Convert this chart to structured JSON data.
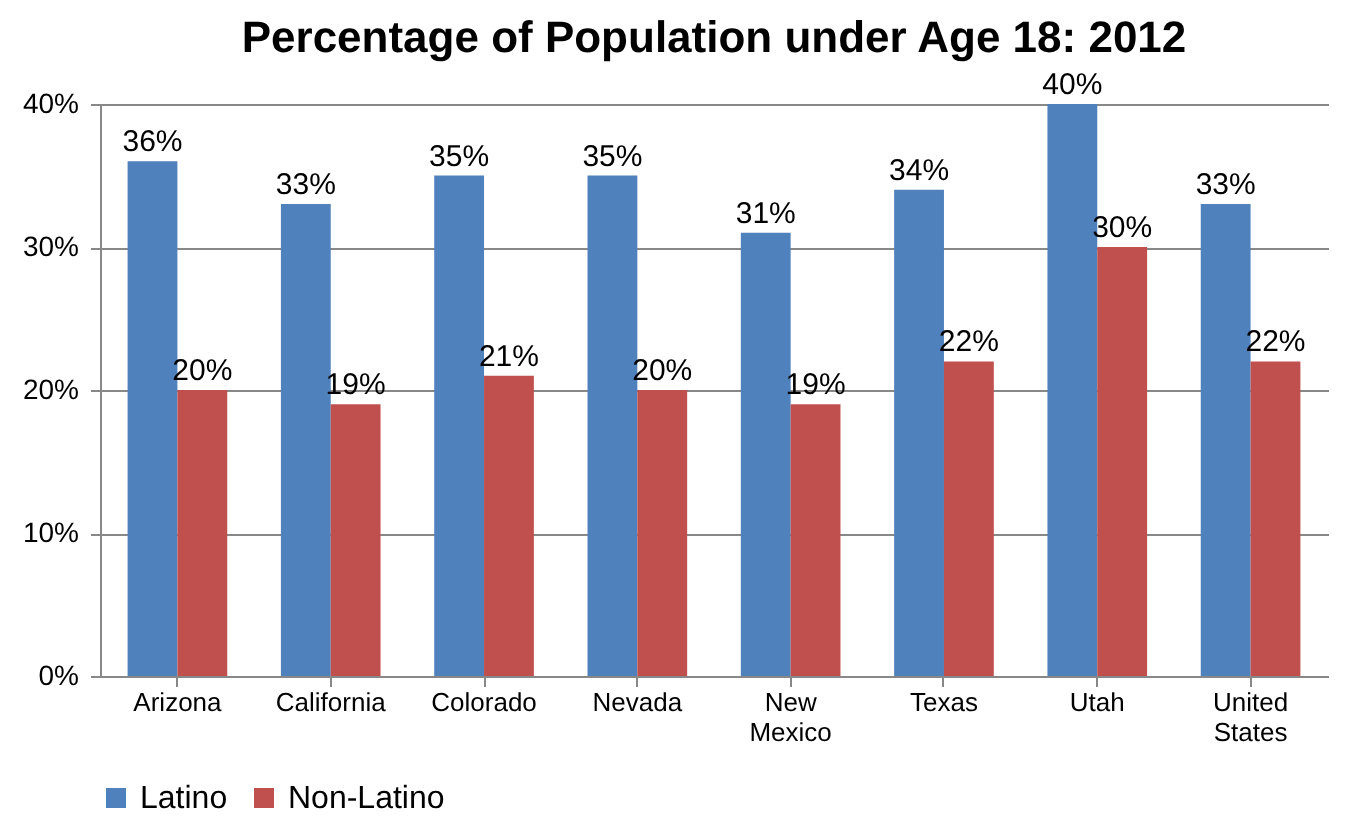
{
  "chart_data": {
    "type": "bar",
    "title": "Percentage of Population under Age 18: 2012",
    "categories": [
      "Arizona",
      "California",
      "Colorado",
      "Nevada",
      "New Mexico",
      "Texas",
      "Utah",
      "United States"
    ],
    "series": [
      {
        "name": "Latino",
        "color": "#4f81bd",
        "values": [
          36,
          33,
          35,
          35,
          31,
          34,
          40,
          33
        ],
        "value_labels": [
          "36%",
          "33%",
          "35%",
          "35%",
          "31%",
          "34%",
          "40%",
          "33%"
        ]
      },
      {
        "name": "Non-Latino",
        "color": "#c0504d",
        "values": [
          20,
          19,
          21,
          20,
          19,
          22,
          30,
          22
        ],
        "value_labels": [
          "20%",
          "19%",
          "21%",
          "20%",
          "19%",
          "22%",
          "30%",
          "22%"
        ]
      }
    ],
    "ylim": [
      0,
      40
    ],
    "yticks": [
      {
        "value": 0,
        "label": "0%"
      },
      {
        "value": 10,
        "label": "10%"
      },
      {
        "value": 20,
        "label": "20%"
      },
      {
        "value": 30,
        "label": "30%"
      },
      {
        "value": 40,
        "label": "40%"
      }
    ],
    "grid": "y",
    "legend": "bottom"
  }
}
